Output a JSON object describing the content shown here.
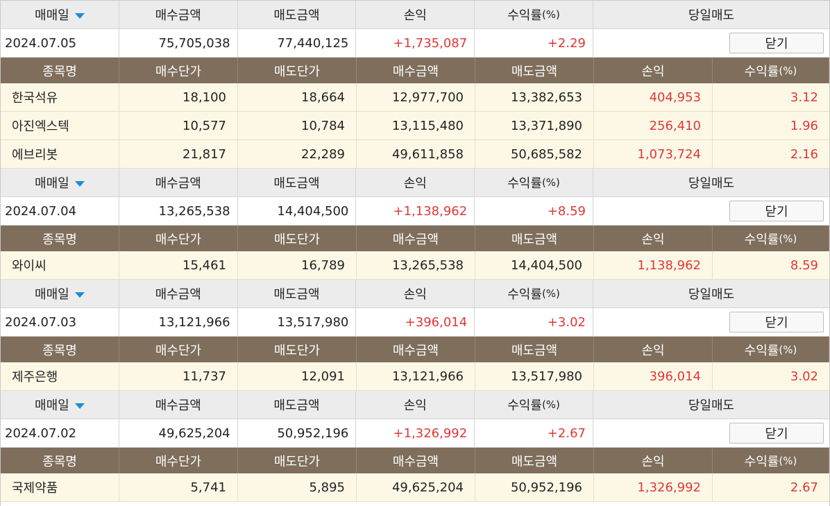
{
  "headers": {
    "trade_date": "매매일",
    "buy_amount": "매수금액",
    "sell_amount": "매도금액",
    "profit": "손익",
    "return_label": "수익률",
    "return_unit": "(%)",
    "same_day_sell": "당일매도"
  },
  "sub_headers": {
    "stock_name": "종목명",
    "buy_price": "매수단가",
    "sell_price": "매도단가",
    "buy_amount": "매수금액",
    "sell_amount": "매도금액",
    "profit": "손익",
    "return_label": "수익률",
    "return_unit": "(%)"
  },
  "close_label": "닫기",
  "colors": {
    "sub_header_bg": "#7e6e5b",
    "item_bg": "#fdf8e6",
    "profit_red": "#e03737",
    "sort_arrow": "#1e8bd8"
  },
  "icons": {
    "sort": "caret-down-icon"
  },
  "groups": [
    {
      "date": "2024.07.05",
      "buy_amount": "75,705,038",
      "sell_amount": "77,440,125",
      "profit": "+1,735,087",
      "return": "+2.29",
      "items": [
        {
          "name": "한국석유",
          "buy_price": "18,100",
          "sell_price": "18,664",
          "buy_amount": "12,977,700",
          "sell_amount": "13,382,653",
          "profit": "404,953",
          "return": "3.12"
        },
        {
          "name": "아진엑스텍",
          "buy_price": "10,577",
          "sell_price": "10,784",
          "buy_amount": "13,115,480",
          "sell_amount": "13,371,890",
          "profit": "256,410",
          "return": "1.96"
        },
        {
          "name": "에브리봇",
          "buy_price": "21,817",
          "sell_price": "22,289",
          "buy_amount": "49,611,858",
          "sell_amount": "50,685,582",
          "profit": "1,073,724",
          "return": "2.16"
        }
      ]
    },
    {
      "date": "2024.07.04",
      "buy_amount": "13,265,538",
      "sell_amount": "14,404,500",
      "profit": "+1,138,962",
      "return": "+8.59",
      "items": [
        {
          "name": "와이씨",
          "buy_price": "15,461",
          "sell_price": "16,789",
          "buy_amount": "13,265,538",
          "sell_amount": "14,404,500",
          "profit": "1,138,962",
          "return": "8.59"
        }
      ]
    },
    {
      "date": "2024.07.03",
      "buy_amount": "13,121,966",
      "sell_amount": "13,517,980",
      "profit": "+396,014",
      "return": "+3.02",
      "items": [
        {
          "name": "제주은행",
          "buy_price": "11,737",
          "sell_price": "12,091",
          "buy_amount": "13,121,966",
          "sell_amount": "13,517,980",
          "profit": "396,014",
          "return": "3.02"
        }
      ]
    },
    {
      "date": "2024.07.02",
      "buy_amount": "49,625,204",
      "sell_amount": "50,952,196",
      "profit": "+1,326,992",
      "return": "+2.67",
      "items": [
        {
          "name": "국제약품",
          "buy_price": "5,741",
          "sell_price": "5,895",
          "buy_amount": "49,625,204",
          "sell_amount": "50,952,196",
          "profit": "1,326,992",
          "return": "2.67"
        }
      ]
    }
  ]
}
